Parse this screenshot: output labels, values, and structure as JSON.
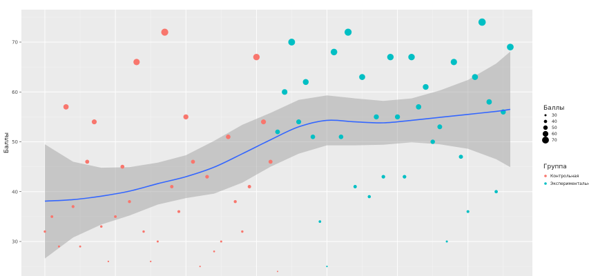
{
  "chart_data": {
    "type": "scatter",
    "title": "",
    "xlabel": "",
    "ylabel": "Баллы",
    "ylim": [
      24,
      75
    ],
    "xlim": [
      0,
      65
    ],
    "yticks": [
      30,
      40,
      50,
      60,
      70
    ],
    "grid": true,
    "legend_position": "right",
    "size_legend": {
      "title": "Баллы",
      "values": [
        "30",
        "40",
        "50",
        "60",
        "70"
      ]
    },
    "color_legend": {
      "title": "Группа",
      "entries": [
        {
          "label": "Контрольная",
          "color": "#f8766d"
        },
        {
          "label": "Экспериментальн",
          "color": "#00bfc4"
        }
      ]
    },
    "series": [
      {
        "name": "Контрольная",
        "color": "#f8766d",
        "x": [
          0,
          1,
          2,
          3,
          4,
          5,
          6,
          7,
          8,
          9,
          10,
          11,
          12,
          13,
          14,
          15,
          16,
          17,
          18,
          19,
          20,
          21,
          22,
          23,
          24,
          25,
          26,
          27,
          28,
          29,
          30,
          31,
          32,
          33
        ],
        "y": [
          32,
          35,
          29,
          57,
          37,
          29,
          46,
          54,
          33,
          26,
          35,
          45,
          38,
          66,
          32,
          26,
          30,
          72,
          41,
          36,
          55,
          46,
          25,
          43,
          28,
          30,
          51,
          38,
          32,
          41,
          67,
          54,
          46,
          24
        ]
      },
      {
        "name": "Экспериментальн",
        "color": "#00bfc4",
        "x": [
          33,
          34,
          35,
          36,
          37,
          38,
          39,
          40,
          41,
          42,
          43,
          44,
          45,
          46,
          47,
          48,
          49,
          50,
          51,
          52,
          53,
          54,
          55,
          56,
          57,
          58,
          59,
          60,
          61,
          62,
          63,
          64
        ],
        "y": [
          52,
          60,
          70,
          54,
          62,
          51,
          34,
          25,
          68,
          51,
          72,
          41,
          63,
          39,
          55,
          43,
          67,
          55,
          43,
          67,
          57,
          61,
          50,
          53,
          30,
          66,
          47,
          36,
          63,
          74,
          58,
          40
        ]
      },
      {
        "name": "",
        "color": "#00bfc4",
        "x": [
          65,
          66
        ],
        "y": [
          56,
          69
        ]
      }
    ],
    "smooth": {
      "color": "#3366ff",
      "band_color": "#999999",
      "x": [
        0,
        4,
        8,
        12,
        16,
        20,
        24,
        28,
        32,
        36,
        40,
        44,
        48,
        52,
        56,
        60,
        64,
        66
      ],
      "y": [
        38.1,
        38.4,
        39.1,
        40.1,
        41.6,
        43.0,
        44.9,
        47.6,
        50.4,
        53.0,
        54.3,
        54.0,
        53.8,
        54.3,
        54.9,
        55.5,
        56.1,
        56.5
      ],
      "ymin": [
        26.6,
        30.8,
        33.4,
        35.2,
        37.4,
        38.7,
        39.6,
        41.8,
        45.0,
        47.6,
        49.3,
        49.3,
        49.4,
        49.9,
        49.5,
        48.6,
        46.5,
        44.9
      ],
      "ymax": [
        49.5,
        46.0,
        44.8,
        44.9,
        45.8,
        47.3,
        50.2,
        53.4,
        55.8,
        58.4,
        59.3,
        58.7,
        58.2,
        58.7,
        60.3,
        62.4,
        65.7,
        68.1
      ]
    }
  }
}
